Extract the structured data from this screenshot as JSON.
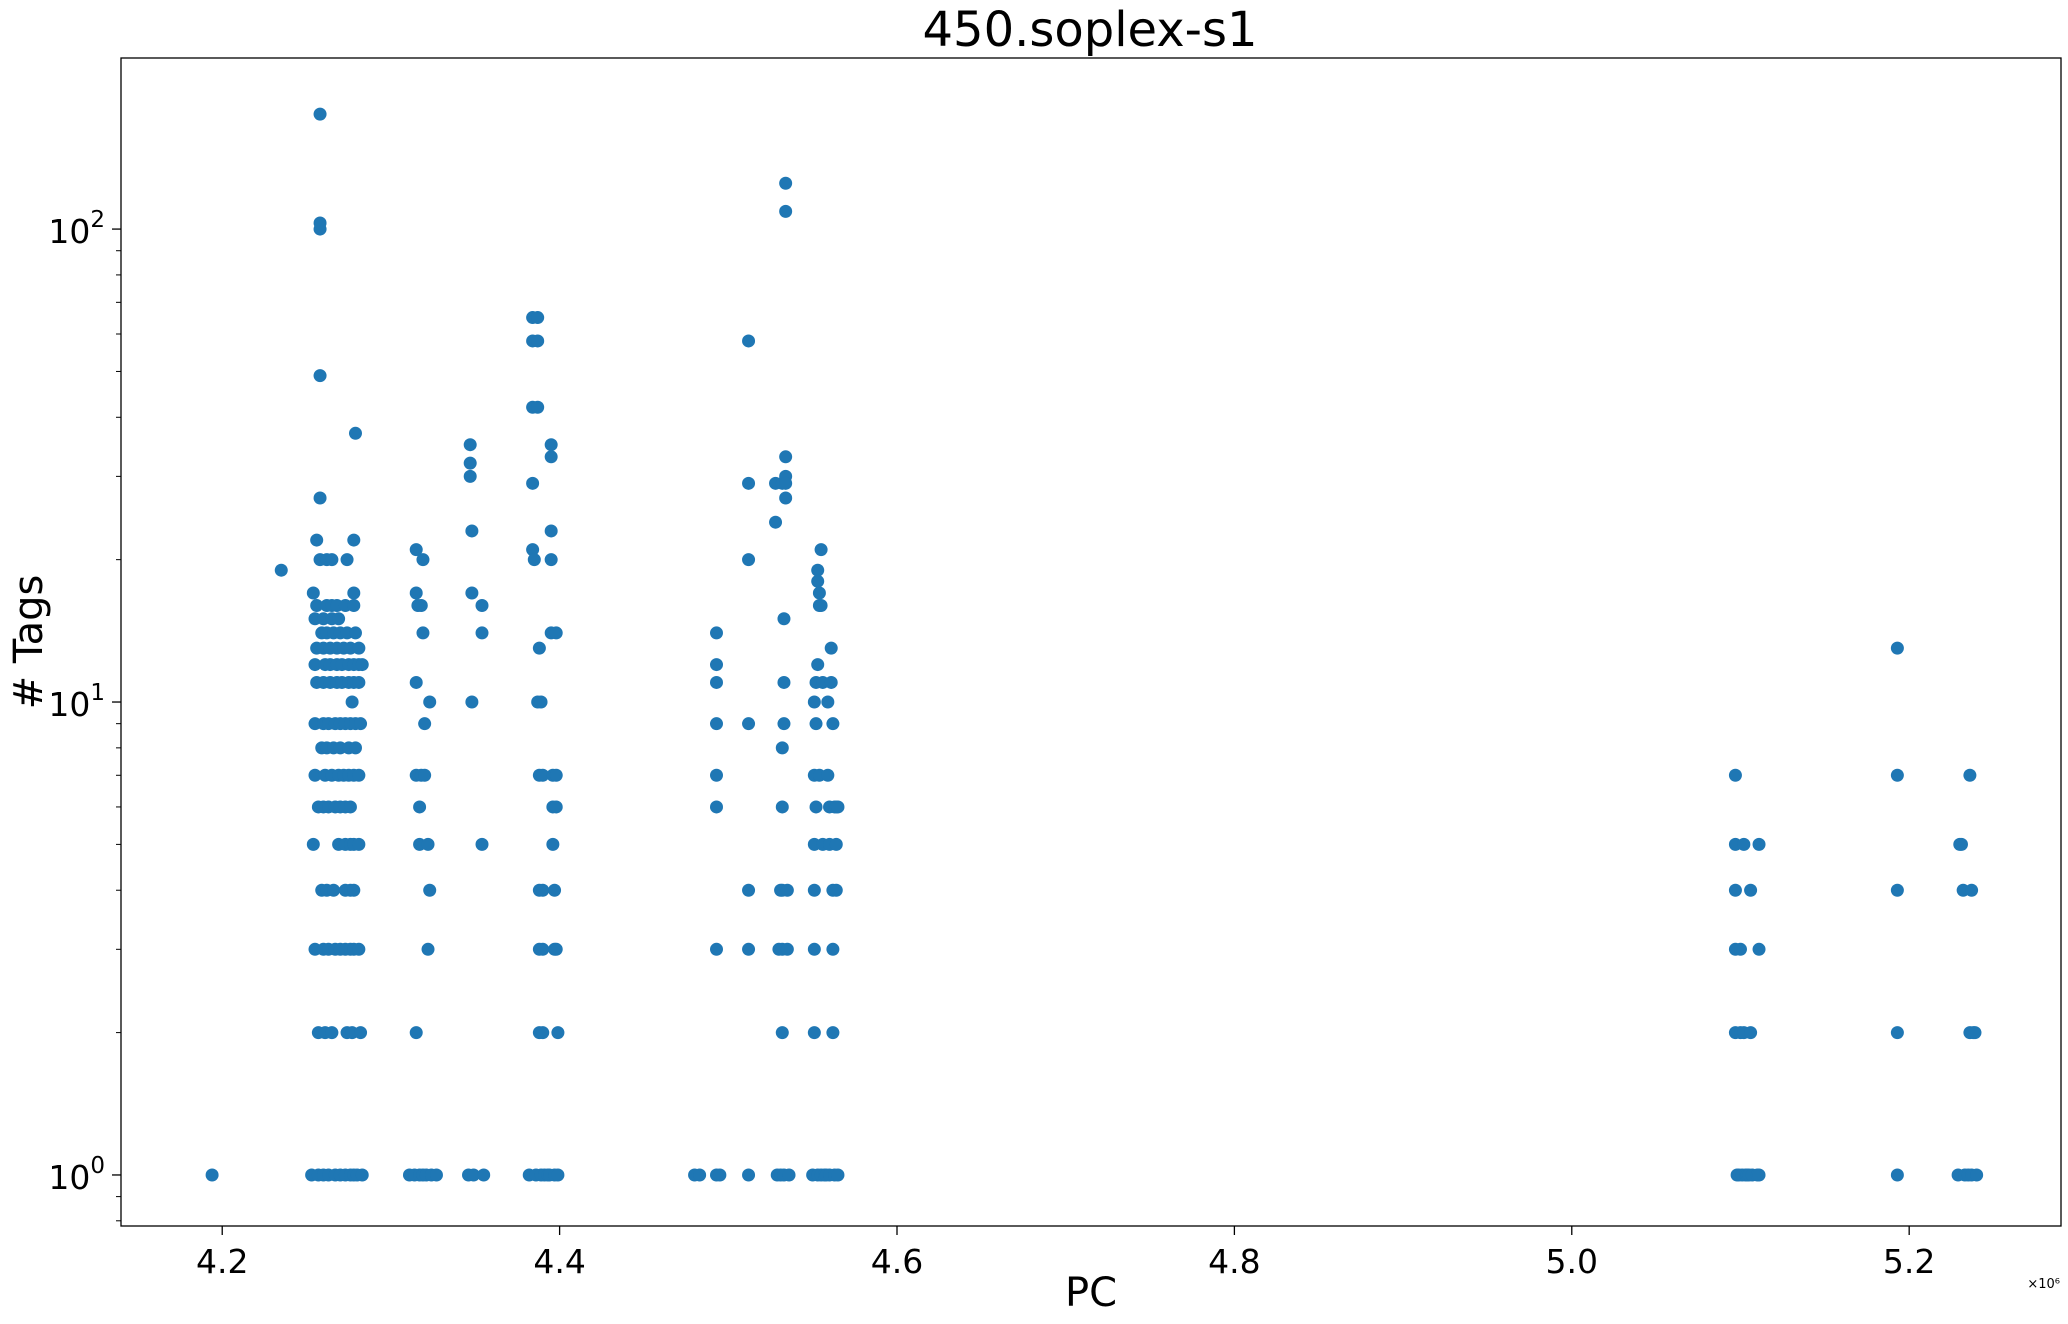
{
  "chart_data": {
    "type": "scatter",
    "title": "450.soplex-s1",
    "xlabel": "PC",
    "ylabel": "# Tags",
    "x_offset_label": "×10⁶",
    "xlim": [
      4.14,
      5.29
    ],
    "ylim": [
      0.78,
      230
    ],
    "yscale": "log",
    "grid": false,
    "marker_color": "#1f77b4",
    "x_ticks": [
      4.2,
      4.4,
      4.6,
      4.8,
      5.0,
      5.2
    ],
    "x_tick_labels": [
      "4.2",
      "4.4",
      "4.6",
      "4.8",
      "5.0",
      "5.2"
    ],
    "y_ticks": [
      1,
      10,
      100
    ],
    "y_tick_labels": [
      {
        "base": "10",
        "exp": "0"
      },
      {
        "base": "10",
        "exp": "1"
      },
      {
        "base": "10",
        "exp": "2"
      }
    ],
    "points": [
      [
        4.194,
        1
      ],
      [
        4.235,
        19
      ],
      [
        4.253,
        1
      ],
      [
        4.254,
        17
      ],
      [
        4.254,
        5
      ],
      [
        4.255,
        15
      ],
      [
        4.255,
        12
      ],
      [
        4.255,
        9
      ],
      [
        4.255,
        7
      ],
      [
        4.255,
        3
      ],
      [
        4.256,
        22
      ],
      [
        4.256,
        13
      ],
      [
        4.256,
        11
      ],
      [
        4.256,
        16
      ],
      [
        4.257,
        1
      ],
      [
        4.257,
        6
      ],
      [
        4.257,
        2
      ],
      [
        4.258,
        175
      ],
      [
        4.258,
        100
      ],
      [
        4.258,
        103
      ],
      [
        4.258,
        49
      ],
      [
        4.258,
        27
      ],
      [
        4.258,
        20
      ],
      [
        4.259,
        14
      ],
      [
        4.259,
        8
      ],
      [
        4.259,
        4
      ],
      [
        4.26,
        1
      ],
      [
        4.26,
        15
      ],
      [
        4.26,
        13
      ],
      [
        4.26,
        11
      ],
      [
        4.26,
        9
      ],
      [
        4.26,
        6
      ],
      [
        4.26,
        3
      ],
      [
        4.261,
        12
      ],
      [
        4.261,
        7
      ],
      [
        4.261,
        2
      ],
      [
        4.262,
        16
      ],
      [
        4.262,
        20
      ],
      [
        4.262,
        14
      ],
      [
        4.262,
        8
      ],
      [
        4.262,
        4
      ],
      [
        4.263,
        1
      ],
      [
        4.263,
        9
      ],
      [
        4.263,
        6
      ],
      [
        4.263,
        3
      ],
      [
        4.264,
        13
      ],
      [
        4.264,
        11
      ],
      [
        4.264,
        12
      ],
      [
        4.265,
        15
      ],
      [
        4.265,
        16
      ],
      [
        4.265,
        20
      ],
      [
        4.265,
        7
      ],
      [
        4.265,
        2
      ],
      [
        4.266,
        14
      ],
      [
        4.266,
        8
      ],
      [
        4.266,
        4
      ],
      [
        4.267,
        1
      ],
      [
        4.267,
        9
      ],
      [
        4.267,
        6
      ],
      [
        4.267,
        3
      ],
      [
        4.268,
        16
      ],
      [
        4.268,
        13
      ],
      [
        4.268,
        11
      ],
      [
        4.268,
        12
      ],
      [
        4.269,
        15
      ],
      [
        4.269,
        7
      ],
      [
        4.269,
        5
      ],
      [
        4.27,
        1
      ],
      [
        4.27,
        14
      ],
      [
        4.27,
        8
      ],
      [
        4.27,
        9
      ],
      [
        4.27,
        6
      ],
      [
        4.27,
        3
      ],
      [
        4.271,
        11
      ],
      [
        4.271,
        12
      ],
      [
        4.272,
        13
      ],
      [
        4.272,
        7
      ],
      [
        4.273,
        1
      ],
      [
        4.273,
        16
      ],
      [
        4.273,
        9
      ],
      [
        4.273,
        6
      ],
      [
        4.273,
        5
      ],
      [
        4.273,
        4
      ],
      [
        4.273,
        3
      ],
      [
        4.274,
        20
      ],
      [
        4.274,
        14
      ],
      [
        4.274,
        2
      ],
      [
        4.275,
        11
      ],
      [
        4.275,
        12
      ],
      [
        4.275,
        8
      ],
      [
        4.275,
        7
      ],
      [
        4.276,
        1
      ],
      [
        4.276,
        13
      ],
      [
        4.276,
        9
      ],
      [
        4.276,
        6
      ],
      [
        4.276,
        5
      ],
      [
        4.276,
        4
      ],
      [
        4.276,
        3
      ],
      [
        4.277,
        10
      ],
      [
        4.277,
        2
      ],
      [
        4.278,
        1
      ],
      [
        4.278,
        22
      ],
      [
        4.278,
        17
      ],
      [
        4.278,
        16
      ],
      [
        4.278,
        12
      ],
      [
        4.278,
        11
      ],
      [
        4.278,
        7
      ],
      [
        4.278,
        5
      ],
      [
        4.278,
        4
      ],
      [
        4.278,
        3
      ],
      [
        4.279,
        37
      ],
      [
        4.279,
        14
      ],
      [
        4.279,
        9
      ],
      [
        4.279,
        8
      ],
      [
        4.28,
        1
      ],
      [
        4.281,
        13
      ],
      [
        4.281,
        12
      ],
      [
        4.281,
        11
      ],
      [
        4.281,
        7
      ],
      [
        4.281,
        5
      ],
      [
        4.281,
        3
      ],
      [
        4.282,
        9
      ],
      [
        4.282,
        2
      ],
      [
        4.283,
        1
      ],
      [
        4.283,
        12
      ],
      [
        4.311,
        1
      ],
      [
        4.314,
        1
      ],
      [
        4.315,
        21
      ],
      [
        4.315,
        17
      ],
      [
        4.315,
        11
      ],
      [
        4.315,
        7
      ],
      [
        4.315,
        2
      ],
      [
        4.316,
        16
      ],
      [
        4.317,
        1
      ],
      [
        4.317,
        6
      ],
      [
        4.317,
        5
      ],
      [
        4.318,
        7
      ],
      [
        4.318,
        16
      ],
      [
        4.319,
        1
      ],
      [
        4.319,
        20
      ],
      [
        4.319,
        14
      ],
      [
        4.32,
        9
      ],
      [
        4.32,
        7
      ],
      [
        4.321,
        1
      ],
      [
        4.322,
        5
      ],
      [
        4.322,
        3
      ],
      [
        4.323,
        10
      ],
      [
        4.323,
        4
      ],
      [
        4.324,
        1
      ],
      [
        4.327,
        1
      ],
      [
        4.346,
        1
      ],
      [
        4.347,
        35
      ],
      [
        4.347,
        32
      ],
      [
        4.347,
        30
      ],
      [
        4.348,
        23
      ],
      [
        4.348,
        17
      ],
      [
        4.348,
        10
      ],
      [
        4.349,
        1
      ],
      [
        4.354,
        16
      ],
      [
        4.354,
        14
      ],
      [
        4.354,
        5
      ],
      [
        4.355,
        1
      ],
      [
        4.382,
        1
      ],
      [
        4.384,
        65
      ],
      [
        4.384,
        58
      ],
      [
        4.384,
        42
      ],
      [
        4.384,
        29
      ],
      [
        4.384,
        21
      ],
      [
        4.385,
        20
      ],
      [
        4.386,
        1
      ],
      [
        4.387,
        65
      ],
      [
        4.387,
        58
      ],
      [
        4.387,
        42
      ],
      [
        4.387,
        10
      ],
      [
        4.388,
        13
      ],
      [
        4.388,
        7
      ],
      [
        4.388,
        4
      ],
      [
        4.388,
        3
      ],
      [
        4.388,
        2
      ],
      [
        4.389,
        1
      ],
      [
        4.389,
        10
      ],
      [
        4.39,
        7
      ],
      [
        4.39,
        4
      ],
      [
        4.39,
        3
      ],
      [
        4.39,
        2
      ],
      [
        4.391,
        1
      ],
      [
        4.393,
        1
      ],
      [
        4.394,
        1
      ],
      [
        4.395,
        35
      ],
      [
        4.395,
        33
      ],
      [
        4.395,
        23
      ],
      [
        4.395,
        20
      ],
      [
        4.395,
        14
      ],
      [
        4.396,
        7
      ],
      [
        4.396,
        6
      ],
      [
        4.396,
        5
      ],
      [
        4.397,
        4
      ],
      [
        4.397,
        3
      ],
      [
        4.397,
        1
      ],
      [
        4.398,
        14
      ],
      [
        4.398,
        6
      ],
      [
        4.398,
        7
      ],
      [
        4.398,
        3
      ],
      [
        4.399,
        2
      ],
      [
        4.399,
        1
      ],
      [
        4.48,
        1
      ],
      [
        4.483,
        1
      ],
      [
        4.493,
        14
      ],
      [
        4.493,
        12
      ],
      [
        4.493,
        11
      ],
      [
        4.493,
        9
      ],
      [
        4.493,
        7
      ],
      [
        4.493,
        6
      ],
      [
        4.493,
        3
      ],
      [
        4.493,
        1
      ],
      [
        4.495,
        1
      ],
      [
        4.512,
        58
      ],
      [
        4.512,
        29
      ],
      [
        4.512,
        20
      ],
      [
        4.512,
        9
      ],
      [
        4.512,
        4
      ],
      [
        4.512,
        3
      ],
      [
        4.512,
        1
      ],
      [
        4.528,
        24
      ],
      [
        4.528,
        29
      ],
      [
        4.529,
        1
      ],
      [
        4.53,
        3
      ],
      [
        4.531,
        4
      ],
      [
        4.531,
        1
      ],
      [
        4.532,
        29
      ],
      [
        4.532,
        8
      ],
      [
        4.532,
        6
      ],
      [
        4.532,
        4
      ],
      [
        4.532,
        3
      ],
      [
        4.532,
        2
      ],
      [
        4.533,
        15
      ],
      [
        4.533,
        11
      ],
      [
        4.533,
        9
      ],
      [
        4.533,
        1
      ],
      [
        4.534,
        125
      ],
      [
        4.534,
        109
      ],
      [
        4.534,
        33
      ],
      [
        4.534,
        30
      ],
      [
        4.534,
        29
      ],
      [
        4.534,
        27
      ],
      [
        4.535,
        4
      ],
      [
        4.535,
        3
      ],
      [
        4.536,
        1
      ],
      [
        4.55,
        1
      ],
      [
        4.551,
        10
      ],
      [
        4.551,
        7
      ],
      [
        4.551,
        5
      ],
      [
        4.551,
        4
      ],
      [
        4.551,
        3
      ],
      [
        4.551,
        2
      ],
      [
        4.552,
        11
      ],
      [
        4.552,
        9
      ],
      [
        4.552,
        6
      ],
      [
        4.553,
        19
      ],
      [
        4.553,
        18
      ],
      [
        4.553,
        12
      ],
      [
        4.553,
        1
      ],
      [
        4.554,
        17
      ],
      [
        4.554,
        16
      ],
      [
        4.554,
        7
      ],
      [
        4.555,
        1
      ],
      [
        4.555,
        21
      ],
      [
        4.555,
        16
      ],
      [
        4.556,
        5
      ],
      [
        4.556,
        11
      ],
      [
        4.557,
        1
      ],
      [
        4.558,
        1
      ],
      [
        4.559,
        10
      ],
      [
        4.559,
        7
      ],
      [
        4.56,
        6
      ],
      [
        4.56,
        5
      ],
      [
        4.56,
        1
      ],
      [
        4.561,
        13
      ],
      [
        4.561,
        11
      ],
      [
        4.562,
        9
      ],
      [
        4.562,
        4
      ],
      [
        4.562,
        3
      ],
      [
        4.562,
        2
      ],
      [
        4.563,
        1
      ],
      [
        4.563,
        6
      ],
      [
        4.564,
        6
      ],
      [
        4.564,
        5
      ],
      [
        4.564,
        4
      ],
      [
        4.565,
        1
      ],
      [
        4.565,
        6
      ],
      [
        5.097,
        7
      ],
      [
        5.097,
        5
      ],
      [
        5.097,
        4
      ],
      [
        5.097,
        3
      ],
      [
        5.097,
        2
      ],
      [
        5.098,
        1
      ],
      [
        5.099,
        1
      ],
      [
        5.1,
        3
      ],
      [
        5.1,
        2
      ],
      [
        5.101,
        1
      ],
      [
        5.102,
        5
      ],
      [
        5.102,
        2
      ],
      [
        5.103,
        1
      ],
      [
        5.104,
        1
      ],
      [
        5.105,
        1
      ],
      [
        5.106,
        4
      ],
      [
        5.106,
        2
      ],
      [
        5.107,
        1
      ],
      [
        5.11,
        1
      ],
      [
        5.111,
        5
      ],
      [
        5.111,
        3
      ],
      [
        5.111,
        1
      ],
      [
        5.193,
        13
      ],
      [
        5.193,
        7
      ],
      [
        5.193,
        4
      ],
      [
        5.193,
        2
      ],
      [
        5.193,
        1
      ],
      [
        5.229,
        1
      ],
      [
        5.23,
        5
      ],
      [
        5.231,
        5
      ],
      [
        5.232,
        4
      ],
      [
        5.233,
        1
      ],
      [
        5.235,
        1
      ],
      [
        5.236,
        7
      ],
      [
        5.236,
        2
      ],
      [
        5.237,
        4
      ],
      [
        5.237,
        1
      ],
      [
        5.238,
        2
      ],
      [
        5.239,
        2
      ],
      [
        5.24,
        1
      ]
    ]
  }
}
